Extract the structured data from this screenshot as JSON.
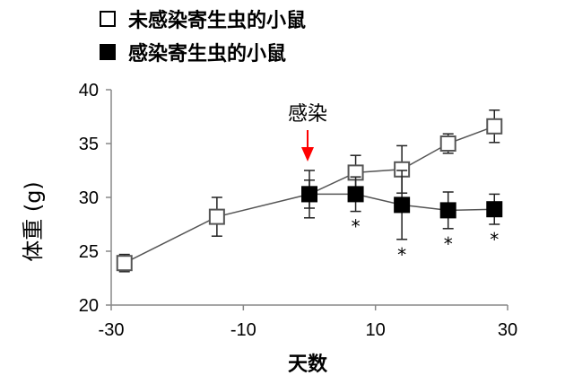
{
  "chart_data": {
    "type": "line",
    "xlabel": "天数",
    "ylabel": "体重 (g)",
    "xlim": [
      -30,
      30
    ],
    "ylim": [
      20,
      40
    ],
    "xticks": [
      -30,
      -10,
      10,
      30
    ],
    "yticks": [
      20,
      25,
      30,
      35,
      40
    ],
    "legend_position": "top-left",
    "series": [
      {
        "name": "未感染寄生虫的小鼠",
        "marker": "open-square",
        "x": [
          -28,
          -14,
          0,
          7,
          14,
          21,
          28
        ],
        "y": [
          23.9,
          28.2,
          30.3,
          32.3,
          32.6,
          35.0,
          36.6
        ],
        "err": [
          0.8,
          1.8,
          2.2,
          1.6,
          2.2,
          0.9,
          1.5
        ]
      },
      {
        "name": "感染寄生虫的小鼠",
        "marker": "filled-square",
        "x": [
          0,
          7,
          14,
          21,
          28
        ],
        "y": [
          30.3,
          30.3,
          29.3,
          28.8,
          28.9
        ],
        "err": [
          1.3,
          1.6,
          3.2,
          1.7,
          1.4
        ]
      }
    ],
    "annotations": [
      {
        "text": "感染",
        "x": 0,
        "arrow": true,
        "arrow_color": "#ff0000"
      }
    ],
    "significance_marks": [
      {
        "x": 7,
        "text": "*"
      },
      {
        "x": 14,
        "text": "*"
      },
      {
        "x": 21,
        "text": "*"
      },
      {
        "x": 28,
        "text": "*"
      }
    ]
  }
}
